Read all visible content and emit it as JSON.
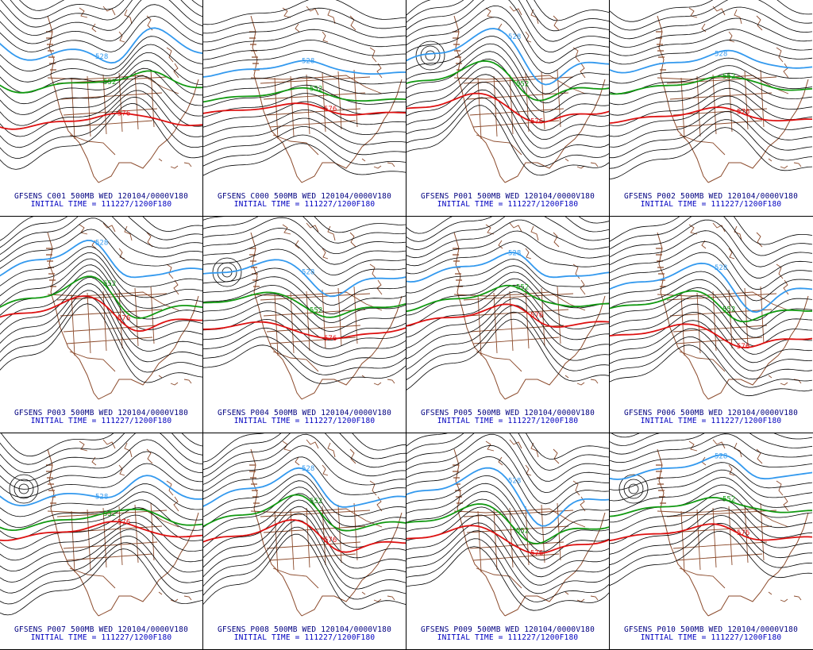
{
  "colors": {
    "background": "#ffffff",
    "contour_black": "#000000",
    "contour_528": "#3399ee",
    "contour_552": "#119911",
    "contour_576": "#dd1111",
    "geography": "#8b4a2b",
    "label_text": "#000080",
    "label_text_sub": "#0000c0"
  },
  "contour_labels": {
    "blue": "528",
    "green": "552",
    "red": "576"
  },
  "panels": [
    {
      "id": "C001",
      "line1": "GFSENS C001 500MB WED 120104/0000V180",
      "line2": "INITIAL TIME = 111227/1200F180",
      "labels": {
        "blue": "528",
        "green": "552",
        "red": "576"
      }
    },
    {
      "id": "C000",
      "line1": "GFSENS C000 500MB WED 120104/0000V180",
      "line2": "INITIAL TIME = 111227/1200F180",
      "labels": {
        "blue": "528",
        "green": "552",
        "red": "576"
      }
    },
    {
      "id": "P001",
      "line1": "GFSENS P001 500MB WED 120104/0000V180",
      "line2": "INITIAL TIME = 111227/1200F180",
      "labels": {
        "blue": "528",
        "green": "552",
        "red": "576"
      }
    },
    {
      "id": "P002",
      "line1": "GFSENS P002 500MB WED 120104/0000V180",
      "line2": "INITIAL TIME = 111227/1200F180",
      "labels": {
        "blue": "528",
        "green": "552",
        "red": "576"
      }
    },
    {
      "id": "P003",
      "line1": "GFSENS P003 500MB WED 120104/0000V180",
      "line2": "INITIAL TIME = 111227/1200F180",
      "labels": {
        "blue": "528",
        "green": "552",
        "red": "576"
      }
    },
    {
      "id": "P004",
      "line1": "GFSENS P004 500MB WED 120104/0000V180",
      "line2": "INITIAL TIME = 111227/1200F180",
      "labels": {
        "blue": "528",
        "green": "552",
        "red": "576"
      }
    },
    {
      "id": "P005",
      "line1": "GFSENS P005 500MB WED 120104/0000V180",
      "line2": "INITIAL TIME = 111227/1200F180",
      "labels": {
        "blue": "528",
        "green": "552",
        "red": "576"
      }
    },
    {
      "id": "P006",
      "line1": "GFSENS P006 500MB WED 120104/0000V180",
      "line2": "INITIAL TIME = 111227/1200F180",
      "labels": {
        "blue": "528",
        "green": "552",
        "red": "576"
      }
    },
    {
      "id": "P007",
      "line1": "GFSENS P007 500MB WED 120104/0000V180",
      "line2": "INITIAL TIME = 111227/1200F180",
      "labels": {
        "blue": "528",
        "green": "552",
        "red": "576"
      }
    },
    {
      "id": "P008",
      "line1": "GFSENS P008 500MB WED 120104/0000V180",
      "line2": "INITIAL TIME = 111227/1200F180",
      "labels": {
        "blue": "528",
        "green": "552",
        "red": "576"
      }
    },
    {
      "id": "P009",
      "line1": "GFSENS P009 500MB WED 120104/0000V180",
      "line2": "INITIAL TIME = 111227/1200F180",
      "labels": {
        "blue": "528",
        "green": "552",
        "red": "576"
      }
    },
    {
      "id": "P010",
      "line1": "GFSENS P010 500MB WED 120104/0000V180",
      "line2": "INITIAL TIME = 111227/1200F180",
      "labels": {
        "blue": "528",
        "green": "552",
        "red": "576"
      }
    }
  ]
}
